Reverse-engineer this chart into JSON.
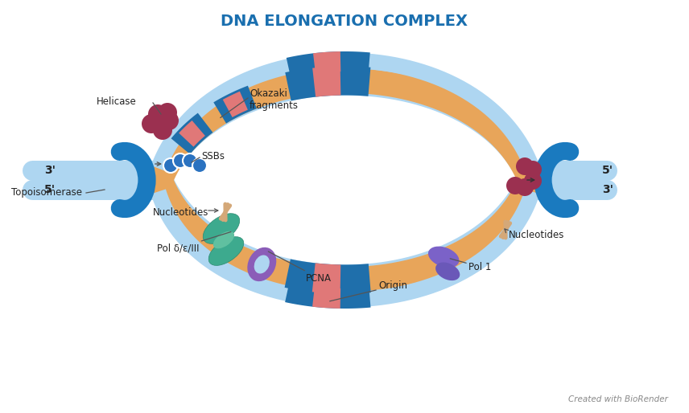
{
  "title": "DNA ELONGATION COMPLEX",
  "title_color": "#1a6faf",
  "title_fontsize": 14,
  "bg_color": "#ffffff",
  "colors": {
    "dna_dark_blue": "#1f6fab",
    "dna_light_blue": "#aed6f1",
    "orange_strand": "#e8a55a",
    "orange_light": "#f0c080",
    "red_segment": "#e07878",
    "pcna_purple": "#8b5db8",
    "pol_teal": "#3daa8e",
    "pol_teal_light": "#60c0a0",
    "pol_purple": "#7b62c8",
    "helicase_red": "#9b3050",
    "ssb_blue": "#2a72c0",
    "topo_blue": "#1a7abf",
    "text_dark": "#222222",
    "ann_line": "#555555"
  },
  "labels": {
    "title": "DNA ELONGATION COMPLEX",
    "pcna": "PCNA",
    "origin": "Origin",
    "pol_delta": "Pol δ/ε/III",
    "nucleotides_l": "Nucleotides",
    "nucleotides_r": "Nucleotides",
    "topoisomerase": "Topoisomerase",
    "ssbs": "SSBs",
    "okazaki": "Okazaki\nfragments",
    "helicase": "Helicase",
    "pol1": "Pol 1",
    "5prime_l": "5'",
    "3prime_l": "3'",
    "3prime_r": "3'",
    "5prime_r": "5'",
    "biorender": "Created with BioRender"
  }
}
